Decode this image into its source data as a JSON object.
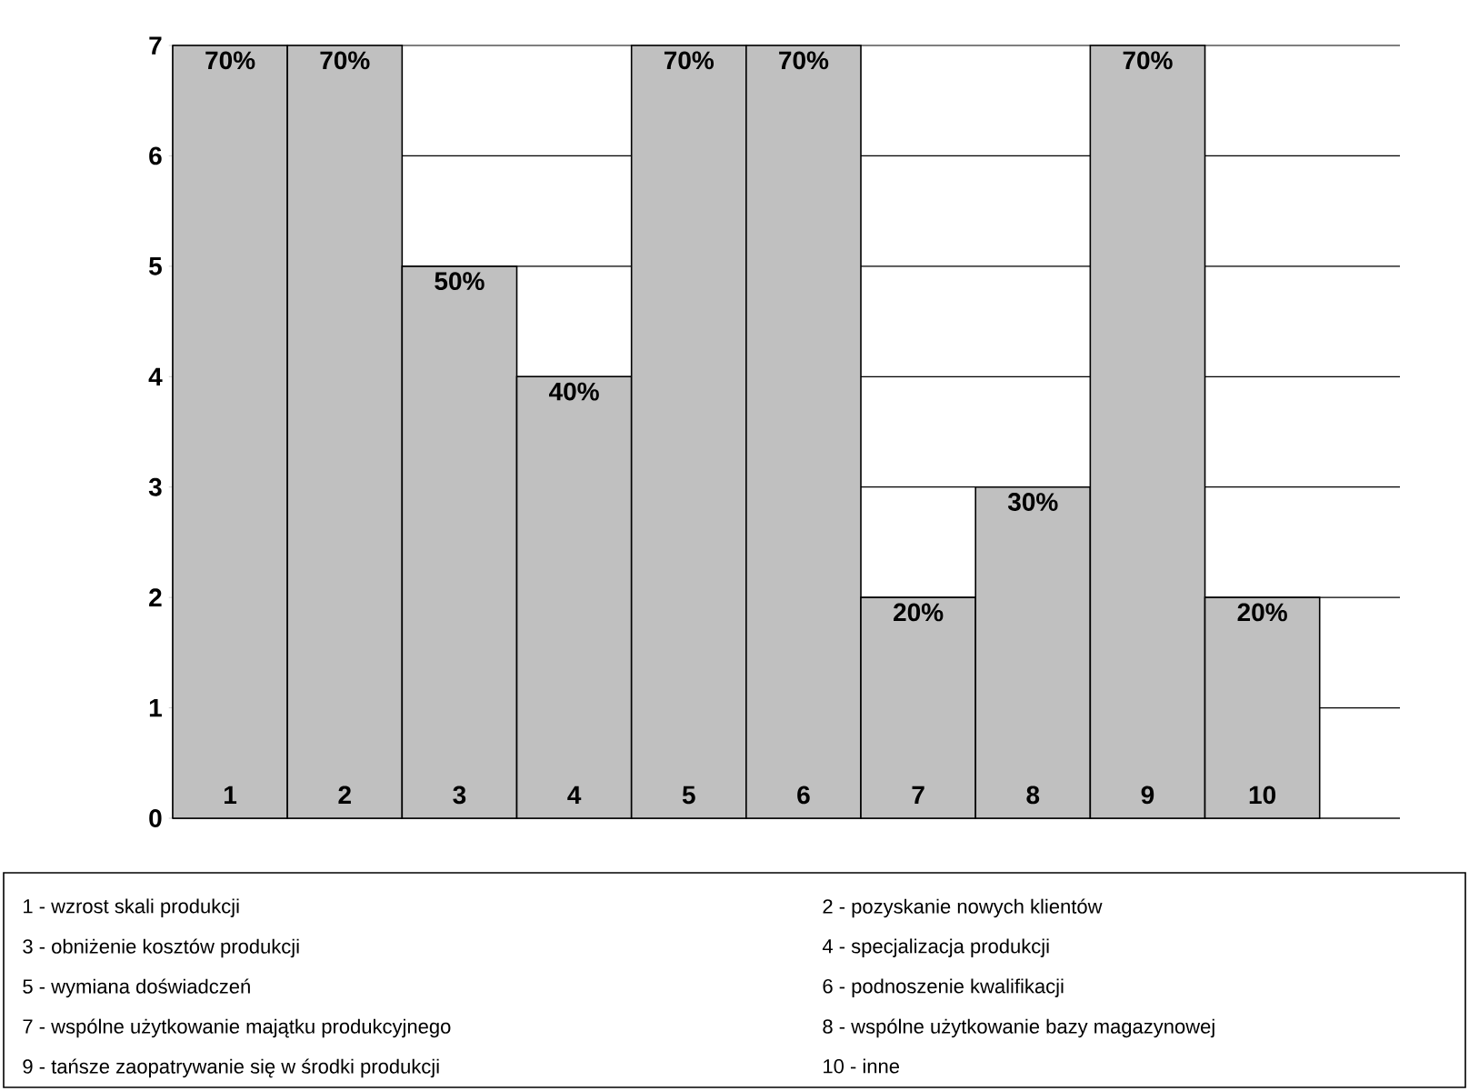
{
  "chart_data": {
    "type": "bar",
    "categories": [
      "1",
      "2",
      "3",
      "4",
      "5",
      "6",
      "7",
      "8",
      "9",
      "10"
    ],
    "values": [
      7,
      7,
      5,
      4,
      7,
      7,
      2,
      3,
      7,
      2
    ],
    "color": "#c0c0c0",
    "ylim": [
      0,
      7
    ],
    "yticks": [
      0,
      1,
      2,
      3,
      4,
      5,
      6,
      7
    ],
    "grid": "y",
    "annotations": [
      {
        "text": "70%",
        "x": "1",
        "y": 7
      },
      {
        "text": "70%",
        "x": "2",
        "y": 7
      },
      {
        "text": "50%",
        "x": "3",
        "y": 5
      },
      {
        "text": "40%",
        "x": "4",
        "y": 4
      },
      {
        "text": "70%",
        "x": "5",
        "y": 7
      },
      {
        "text": "70%",
        "x": "6",
        "y": 7
      },
      {
        "text": "20%",
        "x": "7",
        "y": 2
      },
      {
        "text": "30%",
        "x": "8",
        "y": 3
      },
      {
        "text": "70%",
        "x": "9",
        "y": 7
      },
      {
        "text": "20%",
        "x": "10",
        "y": 2
      },
      "1 - wzrost skali produkcji",
      "2 - pozyskanie nowych klientów",
      "3 - obniżenie kosztów produkcji",
      "4 - specjalizacja produkcji",
      "5 - wymiana doświadczeń",
      "6 - podnoszenie kwalifikacji",
      "7 - wspólne użytkowanie majątku produkcyjnego",
      "8 - wspólne użytkowanie bazy magazynowej",
      "9 - tańsze zaopatrywanie się w środki produkcji",
      "10 - inne"
    ]
  }
}
